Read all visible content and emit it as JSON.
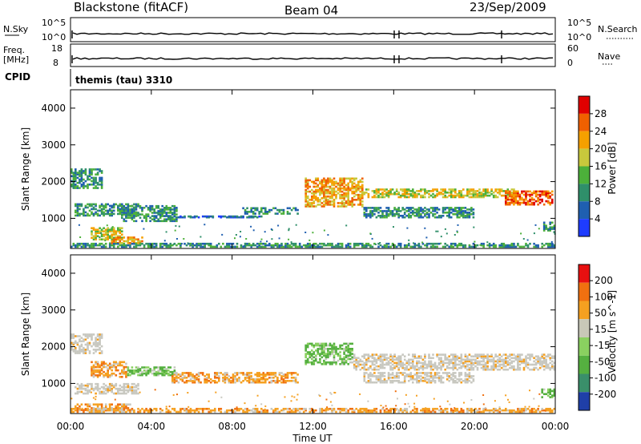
{
  "header": {
    "title_left": "Blackstone (fitACF)",
    "title_center": "Beam 04",
    "title_right": "23/Sep/2009"
  },
  "strips": {
    "nsky_label": "N.Sky",
    "nsky_ticks": [
      "10^5",
      "10^0"
    ],
    "nsearch_label": "N.Search",
    "nsearch_ticks": [
      "10^5",
      "10^0"
    ],
    "freq_label": "Freq.",
    "freq_unit": "[MHz]",
    "freq_ticks": [
      "18",
      "8"
    ],
    "nave_label": "Nave",
    "nave_ticks": [
      "60",
      "0"
    ],
    "cpid_label": "CPID",
    "cpid_value": "themis (tau) 3310"
  },
  "colors": {
    "power": [
      "#1e3cff",
      "#1f5fb0",
      "#2f8f6a",
      "#4cb03a",
      "#c8c83c",
      "#f5a000",
      "#f06000",
      "#e00000"
    ],
    "velocity_pos": [
      "#1f3fa8",
      "#3a8f6a",
      "#55b040",
      "#8ad060"
    ],
    "velocity_neg": [
      "#c8c8b8",
      "#f5a020",
      "#f07010",
      "#e81010"
    ],
    "ground": "#c8c8c0"
  },
  "chart_data": [
    {
      "type": "heatmap",
      "name": "power-panel",
      "ylabel": "Slant Range [km]",
      "xlabel": "Time UT",
      "yticks": [
        "4000",
        "3000",
        "2000",
        "1000"
      ],
      "xticks": [
        "00:00",
        "04:00",
        "08:00",
        "12:00",
        "16:00",
        "20:00",
        "00:00"
      ],
      "xlim": [
        0,
        24
      ],
      "ylim": [
        180,
        4500
      ],
      "colorbar": {
        "label": "Power [dB]",
        "ticks": [
          "28",
          "24",
          "20",
          "16",
          "12",
          "8",
          "4"
        ]
      },
      "regions": [
        {
          "t0": 0.0,
          "t1": 1.6,
          "r0": 1800,
          "r1": 2350,
          "p": 2
        },
        {
          "t0": 0.2,
          "t1": 3.4,
          "r0": 1050,
          "r1": 1400,
          "p": 2
        },
        {
          "t0": 1.0,
          "t1": 2.6,
          "r0": 400,
          "r1": 750,
          "p": 4
        },
        {
          "t0": 2.0,
          "t1": 3.6,
          "r0": 300,
          "r1": 500,
          "p": 5
        },
        {
          "t0": 2.5,
          "t1": 5.3,
          "r0": 900,
          "r1": 1350,
          "p": 2
        },
        {
          "t0": 5.0,
          "t1": 9.5,
          "r0": 1000,
          "r1": 1050,
          "p": 1
        },
        {
          "t0": 8.5,
          "t1": 11.3,
          "r0": 1100,
          "r1": 1300,
          "p": 2
        },
        {
          "t0": 11.6,
          "t1": 14.5,
          "r0": 1300,
          "r1": 2100,
          "p": 5
        },
        {
          "t0": 14.5,
          "t1": 22.0,
          "r0": 1550,
          "r1": 1800,
          "p": 4
        },
        {
          "t0": 14.5,
          "t1": 20.0,
          "r0": 1000,
          "r1": 1300,
          "p": 2
        },
        {
          "t0": 21.5,
          "t1": 23.9,
          "r0": 1350,
          "r1": 1750,
          "p": 6
        },
        {
          "t0": 23.4,
          "t1": 24.0,
          "r0": 600,
          "r1": 900,
          "p": 2
        },
        {
          "t0": 0.0,
          "t1": 24.0,
          "r0": 200,
          "r1": 320,
          "p": 2
        }
      ]
    },
    {
      "type": "heatmap",
      "name": "velocity-panel",
      "ylabel": "Slant Range [km]",
      "xlabel": "Time UT",
      "yticks": [
        "4000",
        "3000",
        "2000",
        "1000"
      ],
      "xticks": [
        "00:00",
        "04:00",
        "08:00",
        "12:00",
        "16:00",
        "20:00",
        "00:00"
      ],
      "xlim": [
        0,
        24
      ],
      "ylim": [
        180,
        4500
      ],
      "colorbar": {
        "label": "Velocity [m s^-1]",
        "ticks": [
          "200",
          "100",
          "50",
          "15",
          "-15",
          "-50",
          "-100",
          "-200"
        ]
      },
      "regions": [
        {
          "t0": 0.0,
          "t1": 1.6,
          "r0": 1800,
          "r1": 2350,
          "v": "g"
        },
        {
          "t0": 1.0,
          "t1": 2.8,
          "r0": 1150,
          "r1": 1600,
          "v": "o"
        },
        {
          "t0": 0.2,
          "t1": 3.4,
          "r0": 700,
          "r1": 1000,
          "v": "g"
        },
        {
          "t0": 2.8,
          "t1": 5.2,
          "r0": 1200,
          "r1": 1450,
          "v": "l"
        },
        {
          "t0": 0.2,
          "t1": 3.0,
          "r0": 250,
          "r1": 450,
          "v": "o"
        },
        {
          "t0": 5.0,
          "t1": 11.3,
          "r0": 1000,
          "r1": 1300,
          "v": "o"
        },
        {
          "t0": 11.6,
          "t1": 14.0,
          "r0": 1500,
          "r1": 2100,
          "v": "l"
        },
        {
          "t0": 14.0,
          "t1": 24.0,
          "r0": 1350,
          "r1": 1800,
          "v": "g"
        },
        {
          "t0": 14.5,
          "t1": 20.0,
          "r0": 1000,
          "r1": 1300,
          "v": "g"
        },
        {
          "t0": 23.3,
          "t1": 24.0,
          "r0": 600,
          "r1": 850,
          "v": "l"
        },
        {
          "t0": 0.0,
          "t1": 24.0,
          "r0": 200,
          "r1": 320,
          "v": "o"
        }
      ]
    }
  ]
}
